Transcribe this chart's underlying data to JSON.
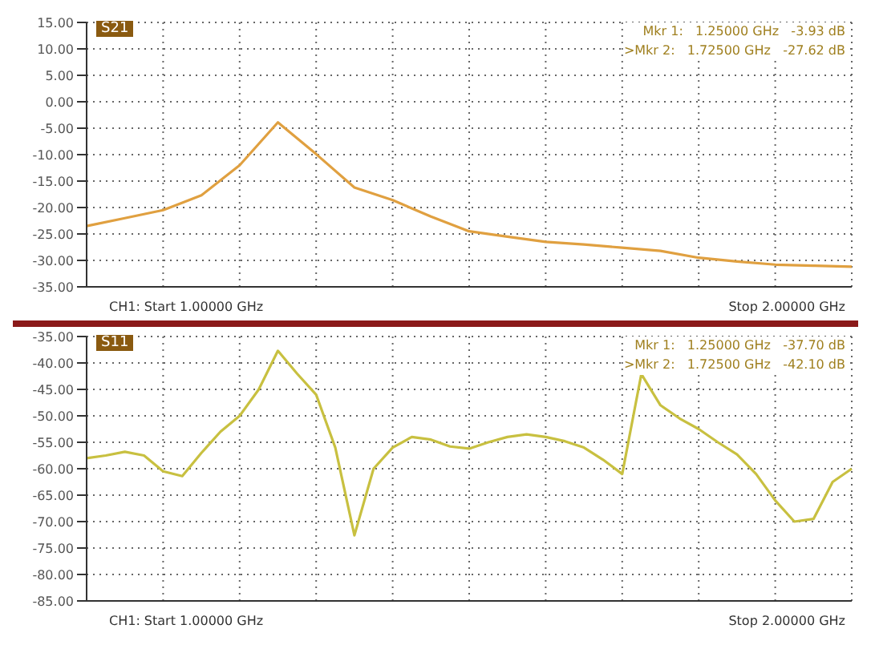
{
  "chart_data": [
    {
      "type": "line",
      "title": "S21",
      "categories": [
        null,
        null,
        null,
        null,
        null,
        null,
        null,
        null,
        null,
        null,
        null,
        null,
        null,
        null,
        null,
        null,
        null,
        null,
        null,
        null,
        null
      ],
      "series": [
        {
          "color": "#e0a040",
          "values": [
            -23.5,
            -22,
            -20.5,
            -17.7,
            -12,
            -3.9,
            -9.9,
            -16.2,
            -18.6,
            -21.7,
            -24.5,
            -25.5,
            -26.5,
            -27,
            -27.6,
            -28.2,
            -29.5,
            -30.2,
            -30.8,
            -31,
            -31.2
          ]
        }
      ],
      "ylim": [
        -35,
        15
      ],
      "yticks": [
        {
          "value": -35,
          "label": "-35.00"
        },
        {
          "value": -30,
          "label": "-30.00"
        },
        {
          "value": -25,
          "label": "-25.00"
        },
        {
          "value": -20,
          "label": "-20.00"
        },
        {
          "value": -15,
          "label": "-15.00"
        },
        {
          "value": -10,
          "label": "-10.00"
        },
        {
          "value": -5,
          "label": "-5.00"
        },
        {
          "value": 0,
          "label": "0.00"
        },
        {
          "value": 5,
          "label": "5.00"
        },
        {
          "value": 10,
          "label": "10.00"
        },
        {
          "value": 15,
          "label": "15.00"
        }
      ],
      "tick_labels": "y",
      "grid": true,
      "marker": "none",
      "line_style": "solid",
      "annotations": [
        "Mkr 1:   1.25000 GHz   -3.93 dB",
        ">Mkr 2:   1.72500 GHz   -27.62 dB",
        "CH1: Start 1.00000 GHz",
        "Stop 2.00000 GHz"
      ]
    },
    {
      "type": "line",
      "title": "S11",
      "categories": [
        null,
        null,
        null,
        null,
        null,
        null,
        null,
        null,
        null,
        null,
        null,
        null,
        null,
        null,
        null,
        null,
        null,
        null,
        null,
        null,
        null,
        null,
        null,
        null,
        null,
        null,
        null,
        null,
        null,
        null,
        null,
        null,
        null,
        null,
        null,
        null,
        null,
        null,
        null,
        null,
        null
      ],
      "series": [
        {
          "color": "#c8c040",
          "values": [
            -58,
            -57.5,
            -56.8,
            -57.5,
            -60.5,
            -61.4,
            -57,
            -53,
            -50,
            -45,
            -37.7,
            -42,
            -46,
            -56,
            -72.6,
            -60,
            -56,
            -54,
            -54.5,
            -55.8,
            -56.2,
            -55,
            -54,
            -53.5,
            -54,
            -54.8,
            -56,
            -58.3,
            -61,
            -42.1,
            -48,
            -50.5,
            -52.5,
            -55,
            -57.3,
            -61,
            -66,
            -70,
            -69.5,
            -62.5,
            -60
          ]
        }
      ],
      "ylim": [
        -85,
        -35
      ],
      "yticks": [
        {
          "value": -85,
          "label": "-85.00"
        },
        {
          "value": -80,
          "label": "-80.00"
        },
        {
          "value": -75,
          "label": "-75.00"
        },
        {
          "value": -70,
          "label": "-70.00"
        },
        {
          "value": -65,
          "label": "-65.00"
        },
        {
          "value": -60,
          "label": "-60.00"
        },
        {
          "value": -55,
          "label": "-55.00"
        },
        {
          "value": -50,
          "label": "-50.00"
        },
        {
          "value": -45,
          "label": "-45.00"
        },
        {
          "value": -40,
          "label": "-40.00"
        },
        {
          "value": -35,
          "label": "-35.00"
        }
      ],
      "tick_labels": "y",
      "grid": true,
      "marker": "none",
      "line_style": "solid",
      "annotations": [
        "Mkr 1:   1.25000 GHz   -37.70 dB",
        ">Mkr 2:   1.72500 GHz   -42.10 dB",
        "CH1: Start 1.00000 GHz",
        "Stop 2.00000 GHz"
      ]
    }
  ]
}
